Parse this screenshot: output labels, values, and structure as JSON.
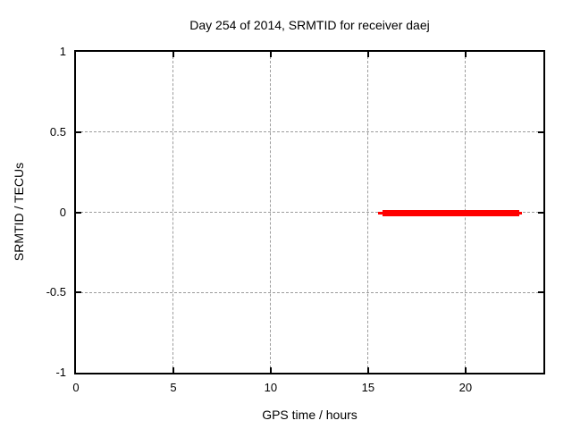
{
  "chart_data": {
    "type": "line",
    "title": "Day 254 of 2014, SRMTID for receiver daej",
    "xlabel": "GPS time / hours",
    "ylabel": "SRMTID / TECUs",
    "xlim": [
      0,
      24
    ],
    "ylim": [
      -1,
      1
    ],
    "grid": true,
    "legend": "none",
    "xticks": [
      {
        "value": 0,
        "label": "0"
      },
      {
        "value": 5,
        "label": "5"
      },
      {
        "value": 10,
        "label": "10"
      },
      {
        "value": 15,
        "label": "15"
      },
      {
        "value": 20,
        "label": "20"
      }
    ],
    "yticks": [
      {
        "value": 1,
        "label": "1"
      },
      {
        "value": 0.5,
        "label": "0.5"
      },
      {
        "value": 0,
        "label": "0"
      },
      {
        "value": -0.5,
        "label": "-0.5"
      },
      {
        "value": -1,
        "label": "-1"
      }
    ],
    "series": [
      {
        "name": "SRMTID",
        "color": "#ff0000",
        "description": "horizontal segment at SRMTID ~ 0 TECUs",
        "points": [
          {
            "x": 15.5,
            "y": 0
          },
          {
            "x": 22.9,
            "y": 0
          }
        ],
        "segments": [
          {
            "x_start": 15.5,
            "x_end": 22.9,
            "y": 0,
            "thickness_px": 3
          },
          {
            "x_start": 15.73,
            "x_end": 22.77,
            "y": 0,
            "thickness_px": 7
          }
        ]
      }
    ]
  },
  "colors": {
    "background": "#ffffff",
    "border": "#000000",
    "grid": "#9c9c9c",
    "series_red": "#ff0000",
    "text": "#000000"
  }
}
